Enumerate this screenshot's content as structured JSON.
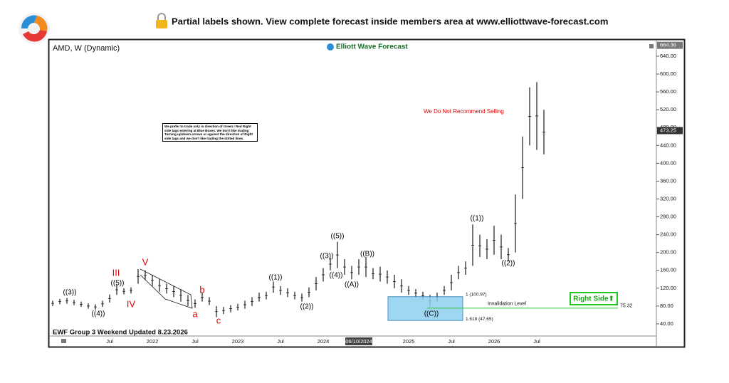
{
  "header": {
    "notice": "Partial labels shown. View complete forecast inside members area at www.elliottwave-forecast.com"
  },
  "chart_data": {
    "type": "ohlc",
    "title": "AMD, W (Dynamic)",
    "brand": "Elliott Wave Forecast",
    "footer": "EWF Group 3 Weekend Updated 8.23.2026",
    "note": "We Do Not Recommend Selling",
    "disclaimer": "We prefer to trade only in direction of Green / Red Right side tags entering at Blue Boxes. We don't like trading Turning up/down arrows or against the direction of Right side tags and we don't like trading the dotted lines.",
    "categories": [
      null,
      null,
      null,
      null,
      null,
      null,
      null,
      null,
      "Jul",
      null,
      null,
      null,
      null,
      null,
      "2022",
      null,
      null,
      null,
      null,
      null,
      "Jul",
      null,
      null,
      null,
      null,
      null,
      "2023",
      null,
      null,
      null,
      null,
      null,
      "Jul",
      null,
      null,
      null,
      null,
      null,
      "2024",
      null,
      null,
      null,
      null,
      "06/10/2024",
      null,
      null,
      null,
      null,
      null,
      null,
      "2025",
      null,
      null,
      null,
      null,
      null,
      "Jul",
      null,
      null,
      null,
      null,
      null,
      "2026",
      null,
      null,
      null,
      null,
      null,
      "Jul",
      null
    ],
    "highlight_category": 43,
    "high": [
      92,
      96,
      98,
      94,
      90,
      86,
      84,
      92,
      106,
      128,
      120,
      122,
      163,
      160,
      150,
      140,
      130,
      125,
      118,
      105,
      95,
      110,
      100,
      80,
      78,
      82,
      85,
      92,
      100,
      110,
      112,
      135,
      125,
      120,
      112,
      108,
      122,
      145,
      165,
      188,
      224,
      185,
      170,
      185,
      190,
      165,
      168,
      160,
      150,
      140,
      125,
      118,
      112,
      105,
      110,
      125,
      150,
      170,
      180,
      263,
      240,
      230,
      260,
      240,
      210,
      330,
      460,
      570,
      582,
      520
    ],
    "low": [
      80,
      84,
      85,
      82,
      78,
      74,
      72,
      78,
      88,
      105,
      106,
      108,
      130,
      138,
      125,
      112,
      108,
      100,
      90,
      80,
      76,
      90,
      82,
      55,
      62,
      66,
      70,
      74,
      80,
      90,
      95,
      110,
      105,
      100,
      95,
      90,
      100,
      115,
      135,
      160,
      165,
      150,
      140,
      150,
      145,
      140,
      135,
      130,
      120,
      110,
      105,
      100,
      94,
      78,
      90,
      105,
      115,
      140,
      150,
      170,
      190,
      185,
      195,
      185,
      180,
      200,
      320,
      440,
      430,
      420
    ],
    "color": "#1a1a1a",
    "ylim": [
      16,
      675
    ],
    "yticks": [
      {
        "value": 40,
        "label": "40.00"
      },
      {
        "value": 80,
        "label": "80.00"
      },
      {
        "value": 120,
        "label": "120.00"
      },
      {
        "value": 160,
        "label": "160.00"
      },
      {
        "value": 200,
        "label": "200.00"
      },
      {
        "value": 240,
        "label": "240.00"
      },
      {
        "value": 280,
        "label": "280.00"
      },
      {
        "value": 320,
        "label": "320.00"
      },
      {
        "value": 360,
        "label": "360.00"
      },
      {
        "value": 400,
        "label": "400.00"
      },
      {
        "value": 440,
        "label": "440.00"
      },
      {
        "value": 480,
        "label": "480.00"
      },
      {
        "value": 520,
        "label": "520.00"
      },
      {
        "value": 560,
        "label": "560.00"
      },
      {
        "value": 600,
        "label": "600.00"
      },
      {
        "value": 640,
        "label": "640.00"
      }
    ],
    "price_tags": [
      664.36,
      473.25
    ],
    "blue_box": [
      {
        "value": 100.97,
        "label": "1 (100.97)"
      },
      {
        "value": 47.65,
        "label": "1.618 (47.65)"
      }
    ],
    "invalidation": {
      "label": "Invalidation Level",
      "value": 75.32
    },
    "right_side": "Right Side⬆",
    "wave_labels": [
      {
        "text": "((3))",
        "color": "#000"
      },
      {
        "text": "((4))",
        "color": "#000"
      },
      {
        "text": "((5))",
        "color": "#000"
      },
      {
        "text": "III",
        "color": "#e00000"
      },
      {
        "text": "IV",
        "color": "#e00000"
      },
      {
        "text": "V",
        "color": "#e00000"
      },
      {
        "text": "a",
        "color": "#e00000"
      },
      {
        "text": "b",
        "color": "#e00000"
      },
      {
        "text": "c",
        "color": "#e00000"
      },
      {
        "text": "((1))",
        "color": "#000"
      },
      {
        "text": "((2))",
        "color": "#000"
      },
      {
        "text": "((3))",
        "color": "#000"
      },
      {
        "text": "((4))",
        "color": "#000"
      },
      {
        "text": "((5))",
        "color": "#000"
      },
      {
        "text": "((A))",
        "color": "#000"
      },
      {
        "text": "((B))",
        "color": "#000"
      },
      {
        "text": "((C))",
        "color": "#000"
      },
      {
        "text": "((1))",
        "color": "#000"
      },
      {
        "text": "((2))",
        "color": "#000"
      }
    ]
  }
}
